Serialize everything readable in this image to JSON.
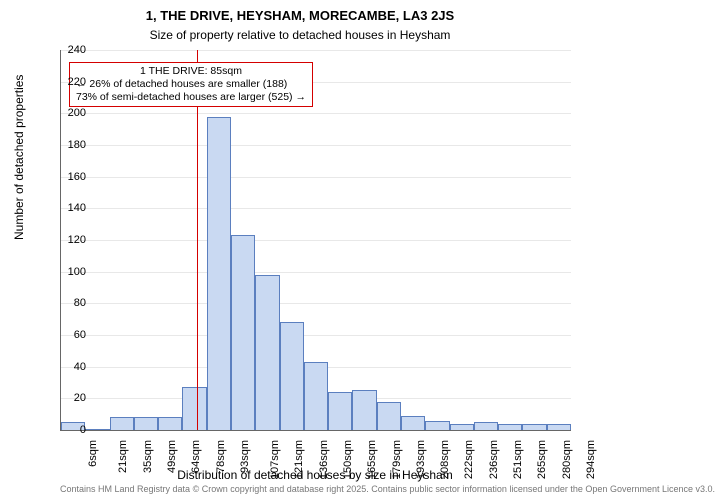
{
  "title_main": "1, THE DRIVE, HEYSHAM, MORECAMBE, LA3 2JS",
  "title_sub": "Size of property relative to detached houses in Heysham",
  "title_fontsize": 13,
  "subtitle_fontsize": 12,
  "ylabel": "Number of detached properties",
  "xlabel": "Distribution of detached houses by size in Heysham",
  "axis_label_fontsize": 12,
  "tick_fontsize": 11,
  "footer": "Contains HM Land Registry data © Crown copyright and database right 2025. Contains public sector information licensed under the Open Government Licence v3.0.",
  "chart": {
    "type": "histogram",
    "background_color": "#ffffff",
    "grid_color": "#e8e8e8",
    "axis_color": "#666666",
    "bar_fill": "#c9d9f2",
    "bar_stroke": "#5b7fbf",
    "bar_stroke_width": 1,
    "ylim": [
      0,
      240
    ],
    "ytick_step": 20,
    "xticks": [
      "6sqm",
      "21sqm",
      "35sqm",
      "49sqm",
      "64sqm",
      "78sqm",
      "93sqm",
      "107sqm",
      "121sqm",
      "136sqm",
      "150sqm",
      "165sqm",
      "179sqm",
      "193sqm",
      "208sqm",
      "222sqm",
      "236sqm",
      "251sqm",
      "265sqm",
      "280sqm",
      "294sqm"
    ],
    "values": [
      5,
      0,
      8,
      8,
      8,
      27,
      198,
      123,
      98,
      68,
      43,
      24,
      25,
      18,
      9,
      6,
      4,
      5,
      4,
      4,
      4
    ],
    "ref_line": {
      "x_index": 5.6,
      "color": "#d40000",
      "width": 1
    },
    "annotation": {
      "border_color": "#d40000",
      "border_width": 1.5,
      "fontsize": 10.5,
      "lines": [
        "1 THE DRIVE: 85sqm",
        "← 26% of detached houses are smaller (188)",
        "73% of semi-detached houses are larger (525) →"
      ]
    }
  }
}
